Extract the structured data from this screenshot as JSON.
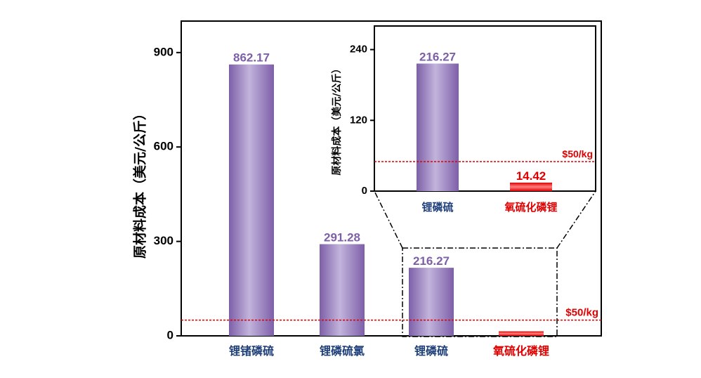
{
  "chart_data": [
    {
      "type": "bar",
      "ylabel": "原材料成本（美元/公斤）",
      "ylim": [
        0,
        1000
      ],
      "yticks": [
        0,
        300,
        600,
        900
      ],
      "categories": [
        "锂锗磷硫",
        "锂磷硫氯",
        "锂磷硫",
        "氧硫化磷锂"
      ],
      "values": [
        862.17,
        291.28,
        216.27,
        14.42
      ],
      "data_labels": [
        "862.17",
        "291.28",
        "216.27",
        ""
      ],
      "category_colors": [
        "#1f3f7a",
        "#1f3f7a",
        "#1f3f7a",
        "#e00000"
      ],
      "bar_colors": [
        "purple",
        "purple",
        "purple",
        "red"
      ],
      "reference_line": {
        "value": 50,
        "label": "$50/kg",
        "color": "#e00000"
      },
      "grid": false
    },
    {
      "type": "bar",
      "role": "inset",
      "ylabel": "原材料成本（美元/公斤）",
      "ylim": [
        0,
        280
      ],
      "yticks": [
        0,
        120,
        240
      ],
      "categories": [
        "锂磷硫",
        "氧硫化磷锂"
      ],
      "values": [
        216.27,
        14.42
      ],
      "data_labels": [
        "216.27",
        "14.42"
      ],
      "category_colors": [
        "#1f3f7a",
        "#e00000"
      ],
      "bar_colors": [
        "purple",
        "red"
      ],
      "reference_line": {
        "value": 50,
        "label": "$50/kg",
        "color": "#e00000"
      },
      "grid": false
    }
  ],
  "colors": {
    "purple_dark": "#7d5fa8",
    "purple_light": "#c2b4dc",
    "red_dark": "#e00000",
    "red_light": "#ff8080",
    "value_label_purple": "#7d5fa8",
    "value_label_red": "#e00000"
  }
}
